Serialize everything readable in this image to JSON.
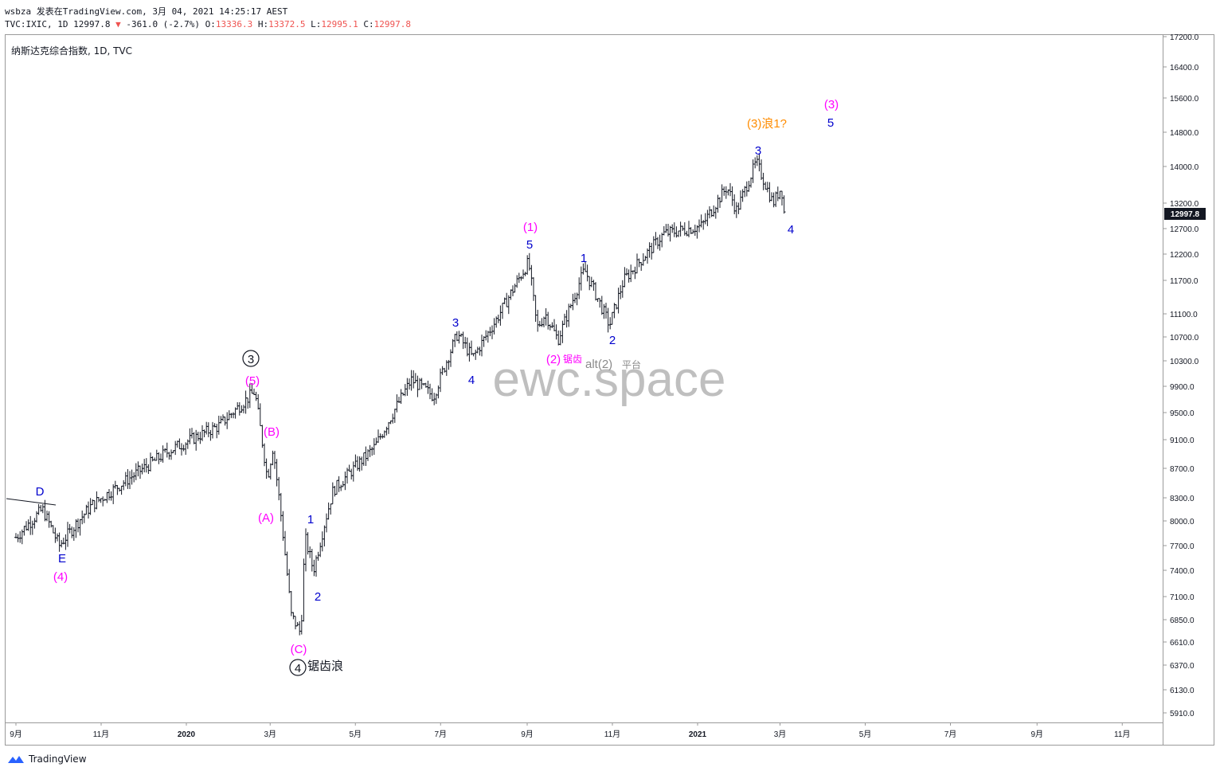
{
  "header": {
    "line1": "wsbza 发表在TradingView.com, 3月 04, 2021 14:25:17 AEST",
    "sym": "TVC:IXIC, 1D 12997.8",
    "chg": "-361.0 (-2.7%)",
    "o_label": "O:",
    "o": "13336.3",
    "h_label": "H:",
    "h": "13372.5",
    "l_label": "L:",
    "l": "12995.1",
    "c_label": "C:",
    "c": "12997.8"
  },
  "symbol_title": "纳斯达克综合指数, 1D, TVC",
  "watermark": "ewc.space",
  "footer": {
    "brand": "TradingView"
  },
  "colors": {
    "wave_major": "#ff00ff",
    "wave_minor": "#0000cd",
    "alt": "#ff8c00",
    "bar": "#131722",
    "down": "#ef5350",
    "price_tag": "#131722"
  },
  "chart_data": {
    "type": "ohlc",
    "symbol": "TVC:IXIC",
    "interval": "1D",
    "last_price": "12997.8",
    "y_ticks": [
      "17200.0",
      "16400.0",
      "15600.0",
      "14800.0",
      "14000.0",
      "13200.0",
      "12700.0",
      "12200.0",
      "11700.0",
      "11100.0",
      "10700.0",
      "10300.0",
      "9900.0",
      "9500.0",
      "9100.0",
      "8700.0",
      "8300.0",
      "8000.0",
      "7700.0",
      "7400.0",
      "7100.0",
      "6850.0",
      "6610.0",
      "6370.0",
      "6130.0",
      "5910.0"
    ],
    "x_ticks": [
      "9月",
      "11月",
      "2020",
      "3月",
      "5月",
      "7月",
      "9月",
      "11月",
      "2021",
      "3月",
      "5月",
      "7月",
      "9月",
      "11月"
    ],
    "price_path": [
      [
        "2019-09-01",
        7800
      ],
      [
        "2019-09-20",
        8150
      ],
      [
        "2019-10-02",
        7700
      ],
      [
        "2019-10-25",
        8200
      ],
      [
        "2019-11-20",
        8550
      ],
      [
        "2019-12-20",
        8950
      ],
      [
        "2020-01-24",
        9300
      ],
      [
        "2020-02-19",
        9820
      ],
      [
        "2020-02-28",
        8560
      ],
      [
        "2020-03-03",
        9000
      ],
      [
        "2020-03-16",
        6900
      ],
      [
        "2020-03-23",
        6700
      ],
      [
        "2020-03-26",
        7800
      ],
      [
        "2020-04-01",
        7400
      ],
      [
        "2020-04-15",
        8400
      ],
      [
        "2020-05-15",
        9000
      ],
      [
        "2020-06-10",
        10000
      ],
      [
        "2020-06-26",
        9750
      ],
      [
        "2020-07-13",
        10750
      ],
      [
        "2020-07-24",
        10350
      ],
      [
        "2020-08-10",
        11000
      ],
      [
        "2020-09-02",
        12050
      ],
      [
        "2020-09-08",
        10850
      ],
      [
        "2020-09-14",
        11100
      ],
      [
        "2020-09-23",
        10650
      ],
      [
        "2020-10-12",
        11900
      ],
      [
        "2020-10-30",
        10900
      ],
      [
        "2020-11-09",
        11700
      ],
      [
        "2020-12-08",
        12600
      ],
      [
        "2021-01-04",
        12750
      ],
      [
        "2021-01-22",
        13550
      ],
      [
        "2021-01-29",
        13050
      ],
      [
        "2021-02-12",
        14100
      ],
      [
        "2021-02-24",
        13200
      ],
      [
        "2021-03-02",
        13550
      ],
      [
        "2021-03-04",
        12997.8
      ]
    ]
  },
  "wave_labels": {
    "circle3": "3",
    "p5": "(5)",
    "pB": "(B)",
    "pA": "(A)",
    "pC": "(C)",
    "circle4": "4",
    "sawtooth": "锯齿浪",
    "D": "D",
    "E": "E",
    "p4": "(4)",
    "m1a": "1",
    "m2a": "2",
    "m3b": "3",
    "m4b": "4",
    "p1": "(1)",
    "m5b": "5",
    "p2": "(2)",
    "p2_note": "锯齿",
    "alt2": "alt(2)",
    "alt2_note": "平台",
    "m1c": "1",
    "m2c": "2",
    "m3c": "3",
    "p3alt": "(3)浪1?",
    "p3": "(3)",
    "m5c": "5",
    "m4c": "4"
  }
}
